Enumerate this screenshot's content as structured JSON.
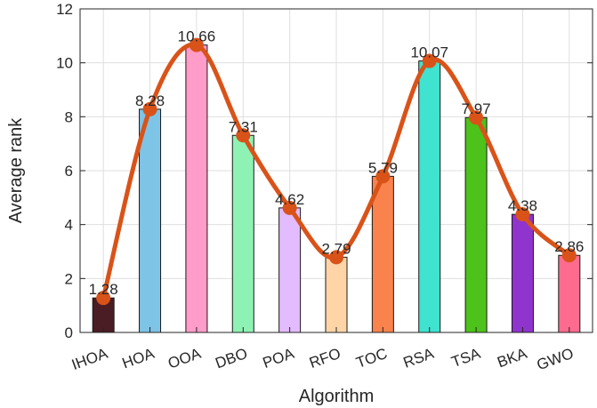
{
  "chart_data": {
    "type": "bar",
    "xlabel": "Algorithm",
    "ylabel": "Average rank",
    "ylim": [
      0,
      12
    ],
    "yticks": [
      0,
      2,
      4,
      6,
      8,
      10,
      12
    ],
    "grid": true,
    "categories": [
      "IHOA",
      "HOA",
      "OOA",
      "DBO",
      "POA",
      "RFO",
      "TOC",
      "RSA",
      "TSA",
      "BKA",
      "GWO"
    ],
    "values": [
      1.28,
      8.28,
      10.66,
      7.31,
      4.62,
      2.79,
      5.79,
      10.07,
      7.97,
      4.38,
      2.86
    ],
    "value_labels": [
      "1.28",
      "8.28",
      "10.66",
      "7.31",
      "4.62",
      "2.79",
      "5.79",
      "10.07",
      "7.97",
      "4.38",
      "2.86"
    ],
    "bar_colors": [
      "#4a1c24",
      "#7ec4e6",
      "#ff9cc9",
      "#8ff2b5",
      "#e3bbff",
      "#ffd5a8",
      "#f9824d",
      "#3fe3cf",
      "#4cc21a",
      "#8f34cc",
      "#ff6b8e"
    ],
    "overlay": {
      "type": "smooth-line",
      "color": "#d95319",
      "marker": "circle"
    }
  }
}
